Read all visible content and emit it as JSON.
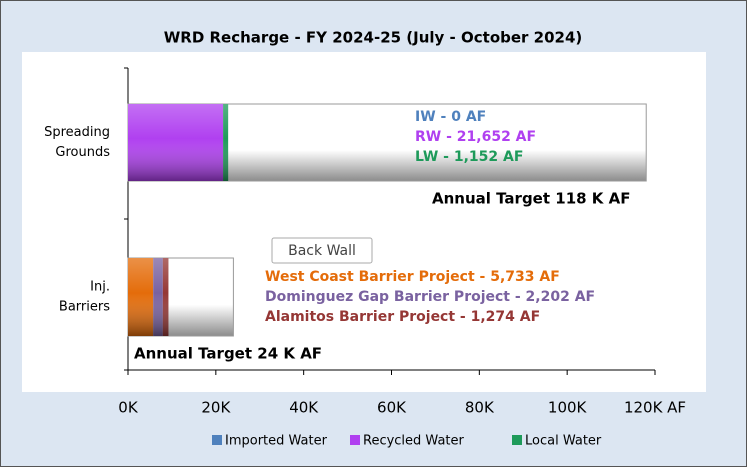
{
  "chart_data": {
    "type": "stacked_bar_horizontal",
    "title": "WRD Recharge - FY 2024-25 (July - October 2024)",
    "categories": [
      [
        "Spreading",
        "Grounds"
      ],
      [
        "Inj.",
        "Barriers"
      ]
    ],
    "series": [
      {
        "name": "Imported Water",
        "color": "#4f81bd",
        "values": [
          0,
          null
        ],
        "value_labels": [
          "IW - 0 AF",
          null
        ]
      },
      {
        "name": "Recycled Water",
        "color": "#b040f0",
        "values": [
          21652,
          null
        ],
        "value_labels": [
          "RW - 21,652 AF",
          null
        ]
      },
      {
        "name": "Local Water",
        "color": "#1e9a5a",
        "values": [
          1152,
          null
        ],
        "value_labels": [
          "LW - 1,152 AF",
          null
        ]
      }
    ],
    "barrier_projects": [
      {
        "color": "#e46c0a",
        "value": 5733,
        "label": "West Coast Barrier Project - 5,733 AF"
      },
      {
        "color": "#7a62a0",
        "value": 2202,
        "label": "Dominguez Gap Barrier Project - 2,202 AF"
      },
      {
        "color": "#953735",
        "value": 1274,
        "label": "Alamitos Barrier Project - 1,274 AF"
      }
    ],
    "targets": [
      118000,
      24000
    ],
    "target_labels": [
      "Annual Target 118 K AF",
      "Annual Target 24 K AF"
    ],
    "annotation": "Back Wall",
    "xlim": [
      0,
      120000
    ],
    "xticks": [
      {
        "value": 0,
        "label": "0K"
      },
      {
        "value": 20000,
        "label": "20K"
      },
      {
        "value": 40000,
        "label": "40K"
      },
      {
        "value": 60000,
        "label": "60K"
      },
      {
        "value": 80000,
        "label": "80K"
      },
      {
        "value": 100000,
        "label": "100K"
      },
      {
        "value": 120000,
        "label": "120K AF"
      }
    ],
    "legend": "bottom"
  }
}
